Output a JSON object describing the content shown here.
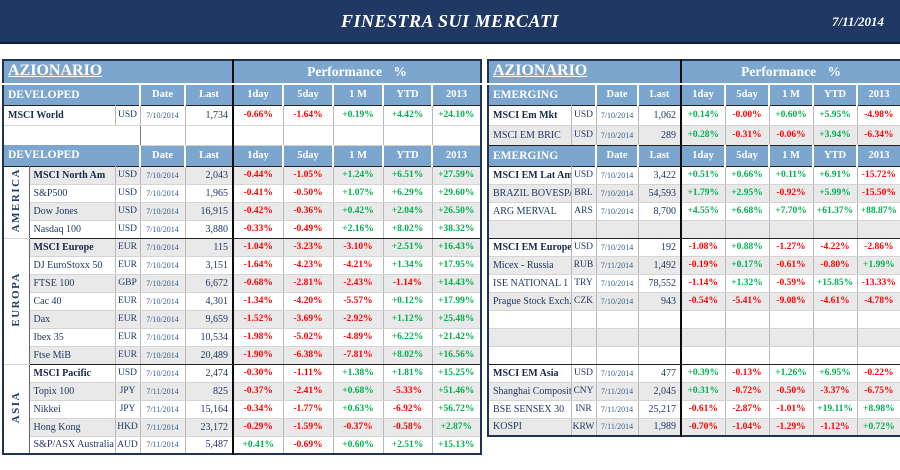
{
  "page": {
    "title": "FINESTRA SUI MERCATI",
    "date": "7/11/2014"
  },
  "colors": {
    "navy": "#1F3864",
    "header_blue": "#7DA6CF",
    "row_shade": "#E9E9E9",
    "positive": "#00B050",
    "negative": "#FF0000"
  },
  "left_table": {
    "title": "AZIONARIO",
    "performance_label": "Performance %",
    "header_label": "DEVELOPED",
    "columns": [
      "Date",
      "Last",
      "1day",
      "5day",
      "1 M",
      "YTD",
      "2013"
    ],
    "blocks": [
      {
        "group": "",
        "rows": [
          {
            "name": "MSCI World",
            "bold": true,
            "cur": "USD",
            "date": "7/10/2014",
            "last": "1,734",
            "perf": [
              "-0.66%",
              "-1.64%",
              "+0.19%",
              "+4.42%",
              "+24.10%"
            ],
            "shade": false
          },
          {
            "empty": true,
            "shade": false
          }
        ]
      },
      {
        "group": "AMERICA",
        "rows": [
          {
            "name": "MSCI North Am",
            "bold": true,
            "cur": "USD",
            "date": "7/10/2014",
            "last": "2,043",
            "perf": [
              "-0.44%",
              "-1.05%",
              "+1.24%",
              "+6.51%",
              "+27.59%"
            ],
            "shade": true
          },
          {
            "name": "S&P500",
            "cur": "USD",
            "date": "7/10/2014",
            "last": "1,965",
            "perf": [
              "-0.41%",
              "-0.50%",
              "+1.07%",
              "+6.29%",
              "+29.60%"
            ],
            "shade": false
          },
          {
            "name": "Dow Jones",
            "cur": "USD",
            "date": "7/10/2014",
            "last": "16,915",
            "perf": [
              "-0.42%",
              "-0.36%",
              "+0.42%",
              "+2.04%",
              "+26.50%"
            ],
            "shade": true
          },
          {
            "name": "Nasdaq 100",
            "cur": "USD",
            "date": "7/10/2014",
            "last": "3,880",
            "perf": [
              "-0.33%",
              "-0.49%",
              "+2.16%",
              "+8.02%",
              "+38.32%"
            ],
            "shade": false
          }
        ]
      },
      {
        "group": "EUROPA",
        "rows": [
          {
            "name": "MSCI Europe",
            "bold": true,
            "cur": "EUR",
            "date": "7/10/2014",
            "last": "115",
            "perf": [
              "-1.04%",
              "-3.23%",
              "-3.10%",
              "+2.51%",
              "+16.43%"
            ],
            "shade": true
          },
          {
            "name": "DJ EuroStoxx 50",
            "cur": "EUR",
            "date": "7/10/2014",
            "last": "3,151",
            "perf": [
              "-1.64%",
              "-4.23%",
              "-4.21%",
              "+1.34%",
              "+17.95%"
            ],
            "shade": false
          },
          {
            "name": "FTSE 100",
            "cur": "GBP",
            "date": "7/10/2014",
            "last": "6,672",
            "perf": [
              "-0.68%",
              "-2.81%",
              "-2.43%",
              "-1.14%",
              "+14.43%"
            ],
            "shade": true
          },
          {
            "name": "Cac 40",
            "cur": "EUR",
            "date": "7/10/2014",
            "last": "4,301",
            "perf": [
              "-1.34%",
              "-4.20%",
              "-5.57%",
              "+0.12%",
              "+17.99%"
            ],
            "shade": false
          },
          {
            "name": "Dax",
            "cur": "EUR",
            "date": "7/10/2014",
            "last": "9,659",
            "perf": [
              "-1.52%",
              "-3.69%",
              "-2.92%",
              "+1.12%",
              "+25.48%"
            ],
            "shade": true
          },
          {
            "name": "Ibex 35",
            "cur": "EUR",
            "date": "7/10/2014",
            "last": "10,534",
            "perf": [
              "-1.98%",
              "-5.02%",
              "-4.89%",
              "+6.22%",
              "+21.42%"
            ],
            "shade": false
          },
          {
            "name": "Ftse MiB",
            "cur": "EUR",
            "date": "7/10/2014",
            "last": "20,489",
            "perf": [
              "-1.90%",
              "-6.38%",
              "-7.81%",
              "+8.02%",
              "+16.56%"
            ],
            "shade": true
          }
        ]
      },
      {
        "group": "ASIA",
        "rows": [
          {
            "name": "MSCI Pacific",
            "bold": true,
            "cur": "USD",
            "date": "7/10/2014",
            "last": "2,474",
            "perf": [
              "-0.30%",
              "-1.11%",
              "+1.38%",
              "+1.81%",
              "+15.25%"
            ],
            "shade": false
          },
          {
            "name": "Topix 100",
            "cur": "JPY",
            "date": "7/11/2014",
            "last": "825",
            "perf": [
              "-0.37%",
              "-2.41%",
              "+0.68%",
              "-5.33%",
              "+51.46%"
            ],
            "shade": true
          },
          {
            "name": "Nikkei",
            "cur": "JPY",
            "date": "7/11/2014",
            "last": "15,164",
            "perf": [
              "-0.34%",
              "-1.77%",
              "+0.63%",
              "-6.92%",
              "+56.72%"
            ],
            "shade": false
          },
          {
            "name": "Hong Kong",
            "cur": "HKD",
            "date": "7/11/2014",
            "last": "23,172",
            "perf": [
              "-0.29%",
              "-1.59%",
              "-0.37%",
              "-0.58%",
              "+2.87%"
            ],
            "shade": true
          },
          {
            "name": "S&P/ASX Australia",
            "cur": "AUD",
            "date": "7/11/2014",
            "last": "5,487",
            "perf": [
              "+0.41%",
              "-0.69%",
              "+0.60%",
              "+2.51%",
              "+15.13%"
            ],
            "shade": false
          }
        ]
      }
    ]
  },
  "right_table": {
    "title": "AZIONARIO",
    "performance_label": "Performance %",
    "header_label": "EMERGING",
    "columns": [
      "Date",
      "Last",
      "1day",
      "5day",
      "1 M",
      "YTD",
      "2013"
    ],
    "blocks": [
      {
        "group": "",
        "rows": [
          {
            "name": "MSCI Em Mkt",
            "bold": true,
            "cur": "USD",
            "date": "7/10/2014",
            "last": "1,062",
            "perf": [
              "+0.14%",
              "-0.00%",
              "+0.60%",
              "+5.95%",
              "-4.98%"
            ],
            "shade": false
          },
          {
            "name": "MSCI EM BRIC",
            "cur": "USD",
            "date": "7/10/2014",
            "last": "289",
            "perf": [
              "+0.28%",
              "-0.31%",
              "-0.06%",
              "+3.94%",
              "-6.34%"
            ],
            "shade": true
          }
        ]
      },
      {
        "group": "",
        "rows": [
          {
            "name": "MSCI EM Lat Am",
            "bold": true,
            "cur": "USD",
            "date": "7/10/2014",
            "last": "3,422",
            "perf": [
              "+0.51%",
              "+0.66%",
              "+0.11%",
              "+6.91%",
              "-15.72%"
            ],
            "shade": false
          },
          {
            "name": "BRAZIL BOVESPA",
            "cur": "BRL",
            "date": "7/10/2014",
            "last": "54,593",
            "perf": [
              "+1.79%",
              "+2.95%",
              "-0.92%",
              "+5.99%",
              "-15.50%"
            ],
            "shade": true
          },
          {
            "name": "ARG MERVAL",
            "cur": "ARS",
            "date": "7/10/2014",
            "last": "8,700",
            "perf": [
              "+4.55%",
              "+6.68%",
              "+7.70%",
              "+61.37%",
              "+88.87%"
            ],
            "shade": false
          },
          {
            "empty": true,
            "shade": true
          }
        ]
      },
      {
        "group": "",
        "rows": [
          {
            "name": "MSCI EM Europe",
            "bold": true,
            "cur": "USD",
            "date": "7/10/2014",
            "last": "192",
            "perf": [
              "-1.08%",
              "+0.88%",
              "-1.27%",
              "-4.22%",
              "-2.86%"
            ],
            "shade": false
          },
          {
            "name": "Micex - Russia",
            "cur": "RUB",
            "date": "7/11/2014",
            "last": "1,492",
            "perf": [
              "-0.19%",
              "+0.17%",
              "-0.61%",
              "-0.80%",
              "+1.99%"
            ],
            "shade": true
          },
          {
            "name": "ISE NATIONAL 1",
            "cur": "TRY",
            "date": "7/10/2014",
            "last": "78,552",
            "perf": [
              "-1.14%",
              "+1.32%",
              "-0.59%",
              "+15.85%",
              "-13.33%"
            ],
            "shade": false
          },
          {
            "name": "Prague Stock Exch.",
            "cur": "CZK",
            "date": "7/10/2014",
            "last": "943",
            "perf": [
              "-0.54%",
              "-5.41%",
              "-9.08%",
              "-4.61%",
              "-4.78%"
            ],
            "shade": true
          },
          {
            "empty": true,
            "shade": false
          },
          {
            "empty": true,
            "shade": true
          },
          {
            "empty": true,
            "shade": false
          }
        ]
      },
      {
        "group": "",
        "rows": [
          {
            "name": "MSCI EM Asia",
            "bold": true,
            "cur": "USD",
            "date": "7/10/2014",
            "last": "477",
            "perf": [
              "+0.39%",
              "-0.13%",
              "+1.26%",
              "+6.95%",
              "-0.22%"
            ],
            "shade": false
          },
          {
            "name": "Shanghai Composite",
            "cur": "CNY",
            "date": "7/11/2014",
            "last": "2,045",
            "perf": [
              "+0.31%",
              "-0.72%",
              "-0.50%",
              "-3.37%",
              "-6.75%"
            ],
            "shade": true
          },
          {
            "name": "BSE SENSEX 30",
            "cur": "INR",
            "date": "7/11/2014",
            "last": "25,217",
            "perf": [
              "-0.61%",
              "-2.87%",
              "-1.01%",
              "+19.11%",
              "+8.98%"
            ],
            "shade": false
          },
          {
            "name": "KOSPI",
            "cur": "KRW",
            "date": "7/11/2014",
            "last": "1,989",
            "perf": [
              "-0.70%",
              "-1.04%",
              "-1.29%",
              "-1.12%",
              "+0.72%"
            ],
            "shade": true
          }
        ]
      }
    ]
  }
}
